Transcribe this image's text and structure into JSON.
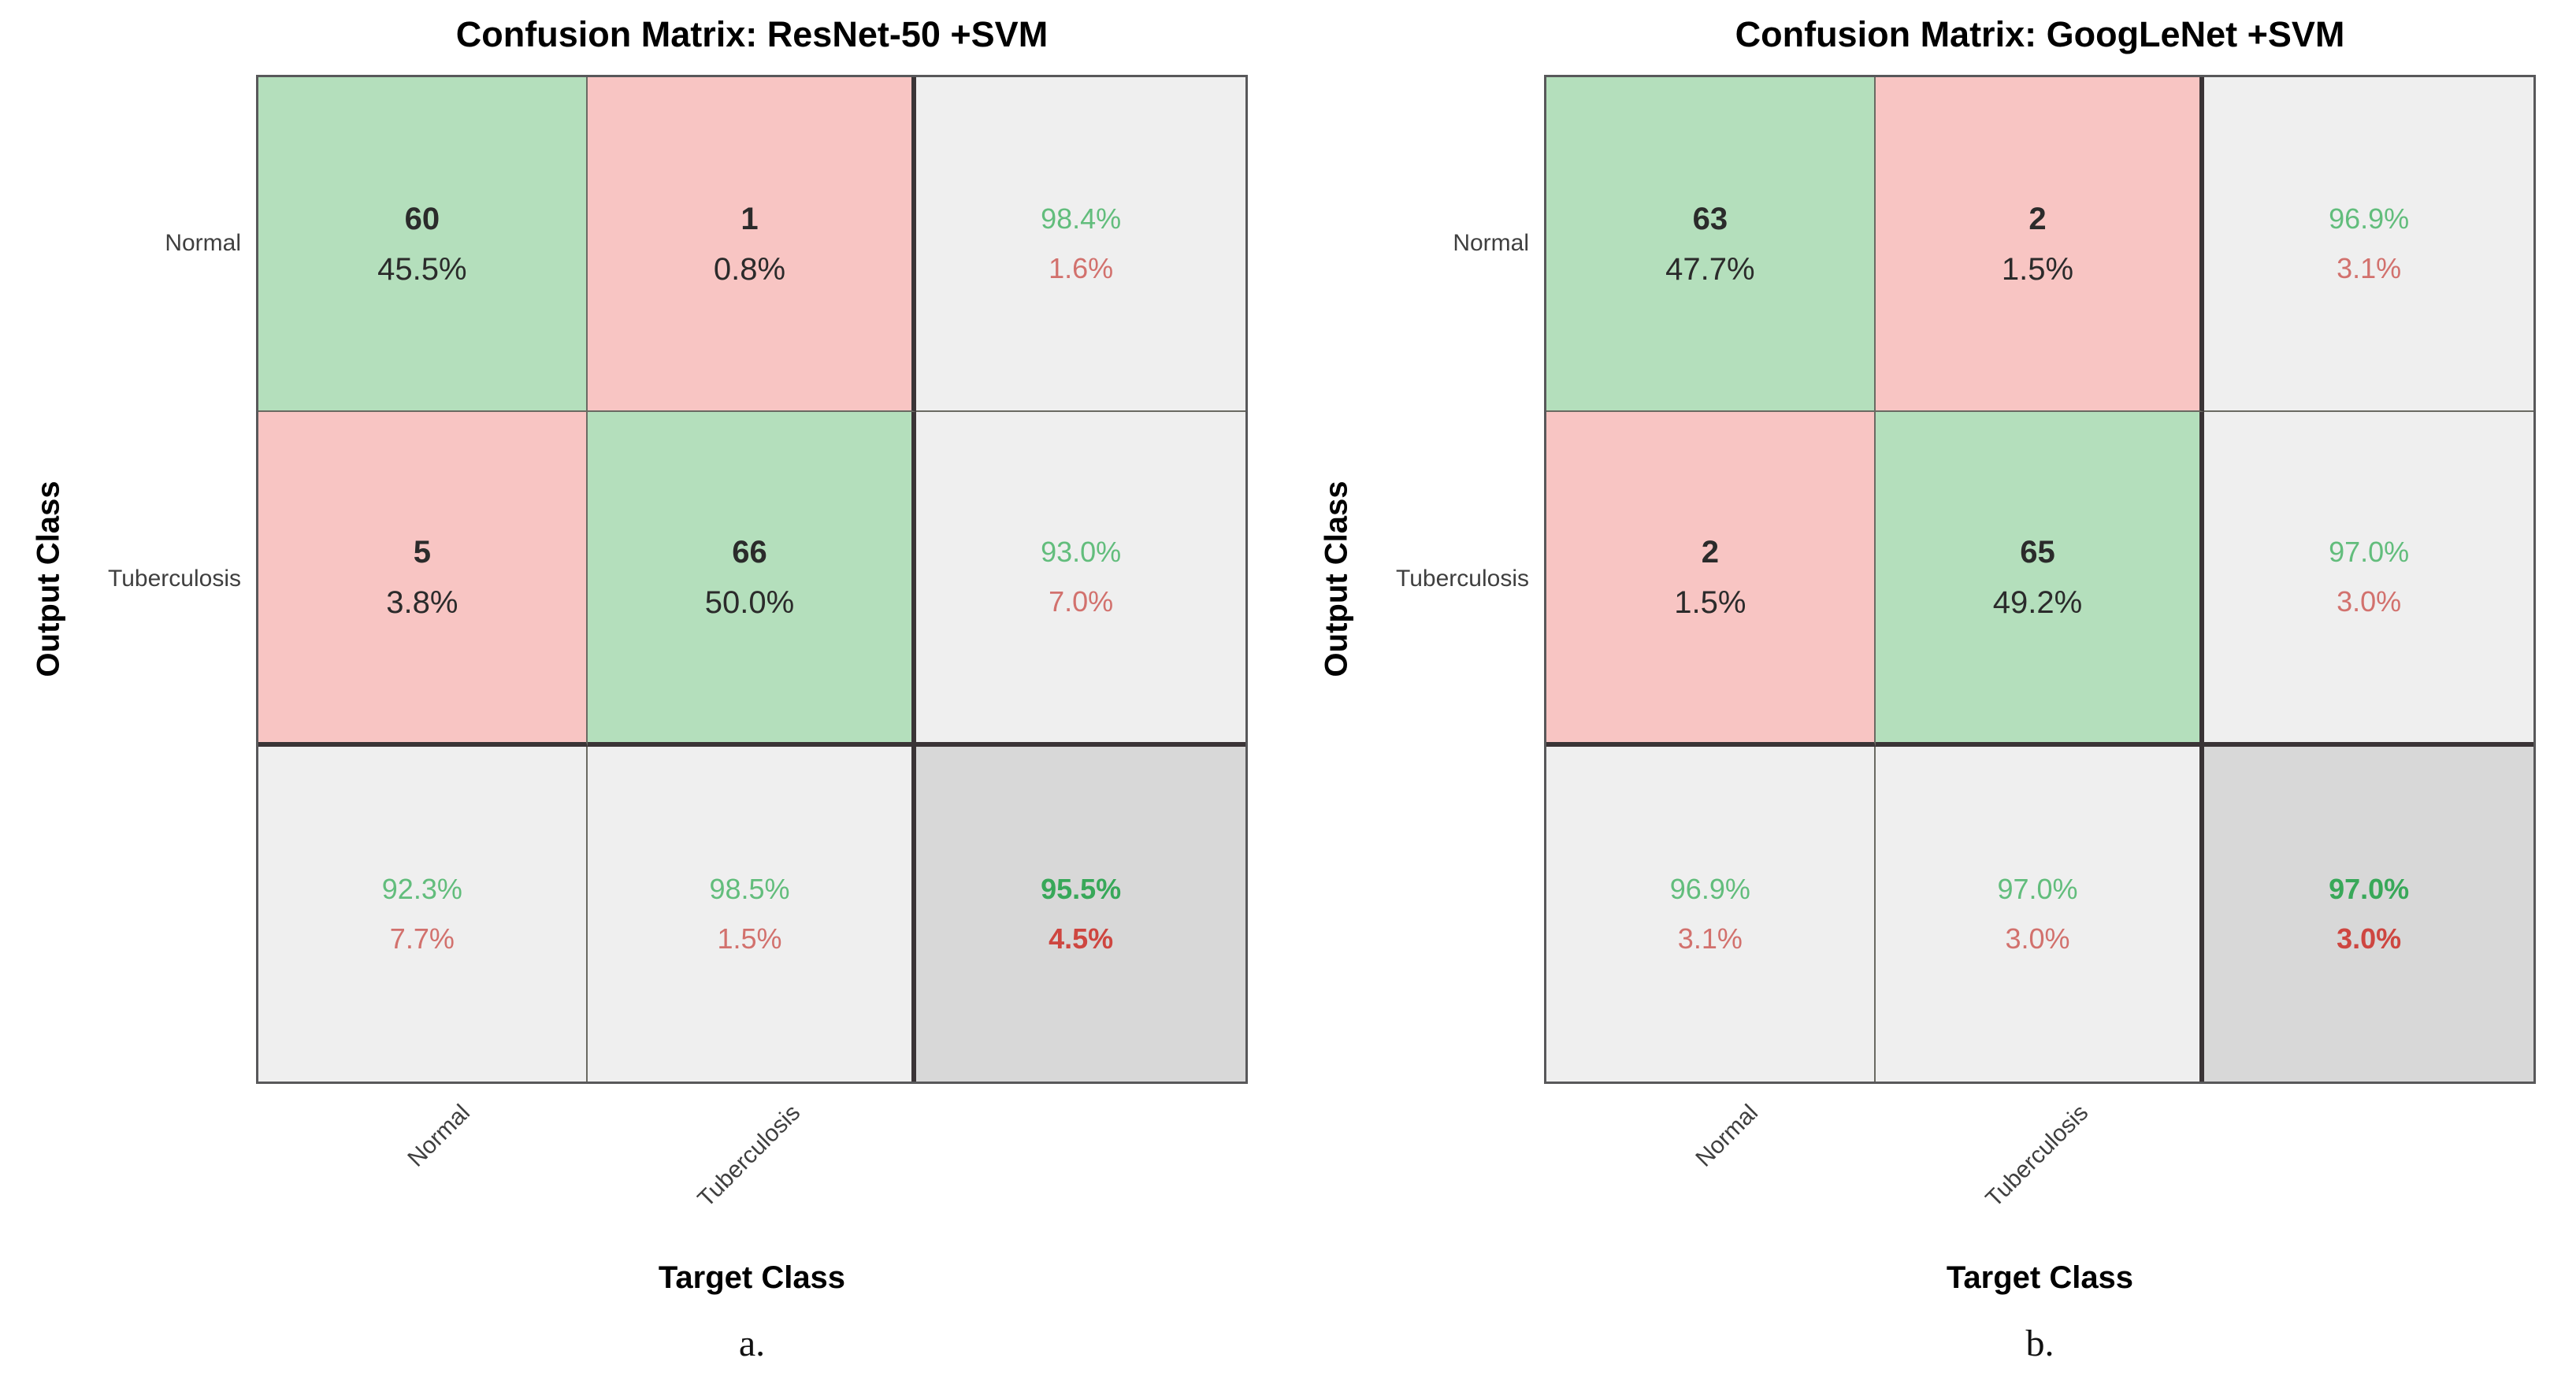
{
  "panels": [
    {
      "id": "a",
      "title": "Confusion Matrix: ResNet-50 +SVM",
      "y_axis_label": "Output Class",
      "x_axis_label": "Target Class",
      "row_labels": [
        "Normal",
        "Tuberculosis"
      ],
      "col_labels": [
        "Normal",
        "Tuberculosis"
      ],
      "caption": "a.",
      "cells": [
        {
          "line1": "60",
          "line2": "45.5%"
        },
        {
          "line1": "1",
          "line2": "0.8%"
        },
        {
          "line1": "98.4%",
          "line2": "1.6%"
        },
        {
          "line1": "5",
          "line2": "3.8%"
        },
        {
          "line1": "66",
          "line2": "50.0%"
        },
        {
          "line1": "93.0%",
          "line2": "7.0%"
        },
        {
          "line1": "92.3%",
          "line2": "7.7%"
        },
        {
          "line1": "98.5%",
          "line2": "1.5%"
        },
        {
          "line1": "95.5%",
          "line2": "4.5%"
        }
      ]
    },
    {
      "id": "b",
      "title": "Confusion Matrix: GoogLeNet +SVM",
      "y_axis_label": "Output Class",
      "x_axis_label": "Target Class",
      "row_labels": [
        "Normal",
        "Tuberculosis"
      ],
      "col_labels": [
        "Normal",
        "Tuberculosis"
      ],
      "caption": "b.",
      "cells": [
        {
          "line1": "63",
          "line2": "47.7%"
        },
        {
          "line1": "2",
          "line2": "1.5%"
        },
        {
          "line1": "96.9%",
          "line2": "3.1%"
        },
        {
          "line1": "2",
          "line2": "1.5%"
        },
        {
          "line1": "65",
          "line2": "49.2%"
        },
        {
          "line1": "97.0%",
          "line2": "3.0%"
        },
        {
          "line1": "96.9%",
          "line2": "3.1%"
        },
        {
          "line1": "97.0%",
          "line2": "3.0%"
        },
        {
          "line1": "97.0%",
          "line2": "3.0%"
        }
      ]
    }
  ],
  "colors": {
    "cell_correct_bg": "#b4dfbc",
    "cell_incorrect_bg": "#f8c5c3",
    "cell_summary_bg": "#efefef",
    "cell_overall_bg": "#d8d8d8",
    "positive_text": "#38a859",
    "negative_text": "#ce4640",
    "grid_line_thin": "#6a6a62",
    "grid_line_thick": "#3a3436"
  },
  "chart_data": [
    {
      "type": "heatmap",
      "title": "Confusion Matrix: ResNet-50 +SVM",
      "xlabel": "Target Class",
      "ylabel": "Output Class",
      "x_categories": [
        "Normal",
        "Tuberculosis"
      ],
      "y_categories": [
        "Normal",
        "Tuberculosis"
      ],
      "counts": [
        [
          60,
          1
        ],
        [
          5,
          66
        ]
      ],
      "percent_of_total": [
        [
          45.5,
          0.8
        ],
        [
          3.8,
          50.0
        ]
      ],
      "row_summary_pct": [
        [
          98.4,
          1.6
        ],
        [
          93.0,
          7.0
        ]
      ],
      "col_summary_pct": [
        [
          92.3,
          7.7
        ],
        [
          98.5,
          1.5
        ]
      ],
      "overall_accuracy_pct": 95.5,
      "overall_error_pct": 4.5,
      "caption": "a."
    },
    {
      "type": "heatmap",
      "title": "Confusion Matrix: GoogLeNet +SVM",
      "xlabel": "Target Class",
      "ylabel": "Output Class",
      "x_categories": [
        "Normal",
        "Tuberculosis"
      ],
      "y_categories": [
        "Normal",
        "Tuberculosis"
      ],
      "counts": [
        [
          63,
          2
        ],
        [
          2,
          65
        ]
      ],
      "percent_of_total": [
        [
          47.7,
          1.5
        ],
        [
          1.5,
          49.2
        ]
      ],
      "row_summary_pct": [
        [
          96.9,
          3.1
        ],
        [
          97.0,
          3.0
        ]
      ],
      "col_summary_pct": [
        [
          96.9,
          3.1
        ],
        [
          97.0,
          3.0
        ]
      ],
      "overall_accuracy_pct": 97.0,
      "overall_error_pct": 3.0,
      "caption": "b."
    }
  ]
}
